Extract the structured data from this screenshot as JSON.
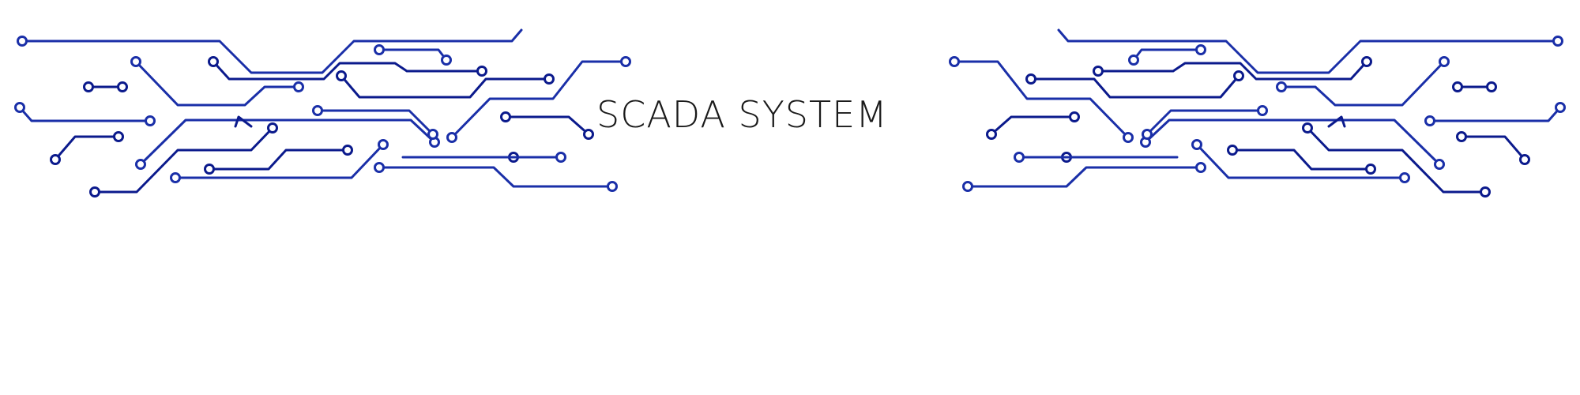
{
  "title": "SCADA SYSTEM",
  "colors": {
    "trace_primary": "#1a2fa8",
    "trace_secondary": "#0b1a8c",
    "text": "#1a1a1a",
    "background": "#ffffff"
  },
  "graphics": {
    "left": "circuit-traces-graphic",
    "right": "circuit-traces-graphic"
  }
}
